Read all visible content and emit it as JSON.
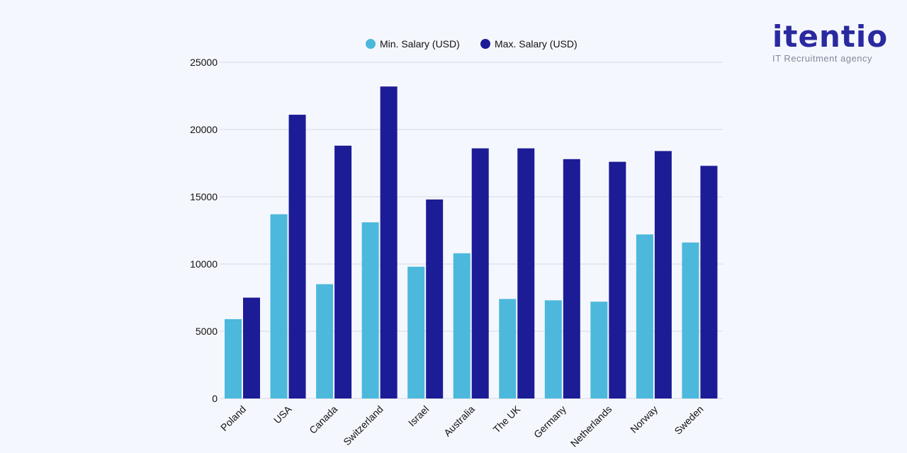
{
  "brand": {
    "name": "itentio",
    "tagline": "IT Recruitment agency"
  },
  "chart_data": {
    "type": "bar",
    "categories": [
      "Poland",
      "USA",
      "Canada",
      "Switzerland",
      "Israel",
      "Australia",
      "The UK",
      "Germany",
      "Netherlands",
      "Norway",
      "Sweden"
    ],
    "series": [
      {
        "name": "Min. Salary (USD)",
        "color": "#4cb8dc",
        "values": [
          5900,
          13700,
          8500,
          13100,
          9800,
          10800,
          7400,
          7300,
          7200,
          12200,
          11600
        ]
      },
      {
        "name": "Max. Salary (USD)",
        "color": "#1c1c96",
        "values": [
          7500,
          21100,
          18800,
          23200,
          14800,
          18600,
          18600,
          17800,
          17600,
          18400,
          17300
        ]
      }
    ],
    "ylim": [
      0,
      25000
    ],
    "yticks": [
      0,
      5000,
      10000,
      15000,
      20000,
      25000
    ],
    "title": "",
    "xlabel": "",
    "ylabel": "",
    "grid": true,
    "legend": "top-center"
  }
}
